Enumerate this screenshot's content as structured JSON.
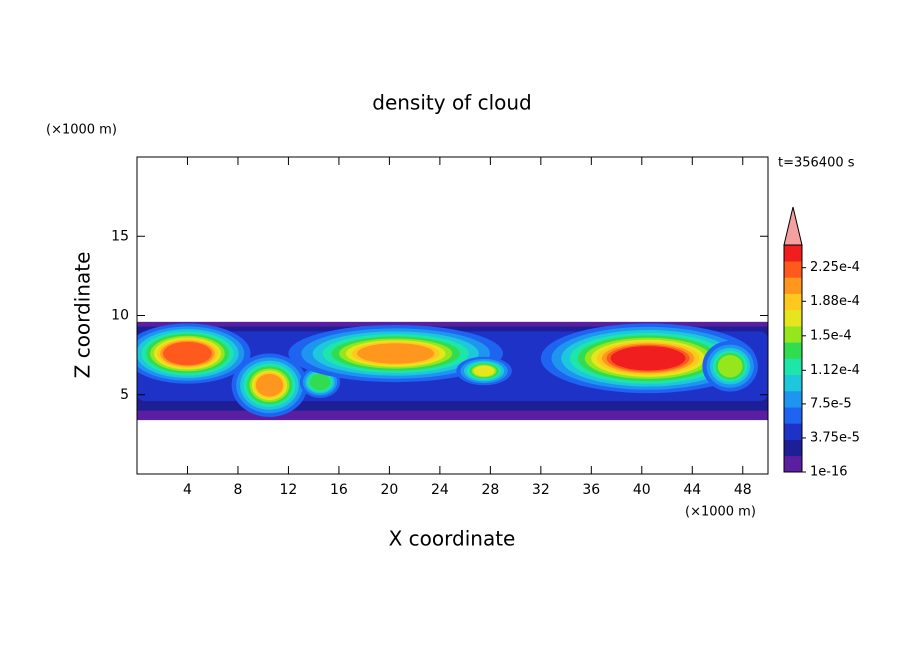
{
  "chart_data": {
    "type": "contour",
    "title": "density of cloud",
    "xlabel": "X coordinate",
    "ylabel": "Z coordinate",
    "xunit": "(×1000 m)",
    "yunit": "(×1000 m)",
    "annotation": "t=356400 s",
    "xlim": [
      0,
      50
    ],
    "xticks": [
      4,
      8,
      12,
      16,
      20,
      24,
      28,
      32,
      36,
      40,
      44,
      48
    ],
    "ylim": [
      0,
      20
    ],
    "yticks": [
      5,
      10,
      15
    ],
    "colorbar": {
      "lim": [
        1e-16,
        0.00025
      ],
      "ticks": [
        {
          "value": 1e-16,
          "label": "1e-16"
        },
        {
          "value": 3.75e-05,
          "label": "3.75e-5"
        },
        {
          "value": 7.5e-05,
          "label": "7.5e-5"
        },
        {
          "value": 0.000112,
          "label": "1.12e-4"
        },
        {
          "value": 0.00015,
          "label": "1.5e-4"
        },
        {
          "value": 0.000188,
          "label": "1.88e-4"
        },
        {
          "value": 0.000225,
          "label": "2.25e-4"
        }
      ],
      "colors": [
        "#5a1ea0",
        "#1e1e96",
        "#1e32c8",
        "#1e64f0",
        "#1e96f0",
        "#1ec8dc",
        "#1ee6aa",
        "#32dc50",
        "#96e61e",
        "#e6e61e",
        "#ffc81e",
        "#ff961e",
        "#ff5a1e",
        "#f01e1e"
      ],
      "extend_color": "#f4a0a0"
    }
  }
}
